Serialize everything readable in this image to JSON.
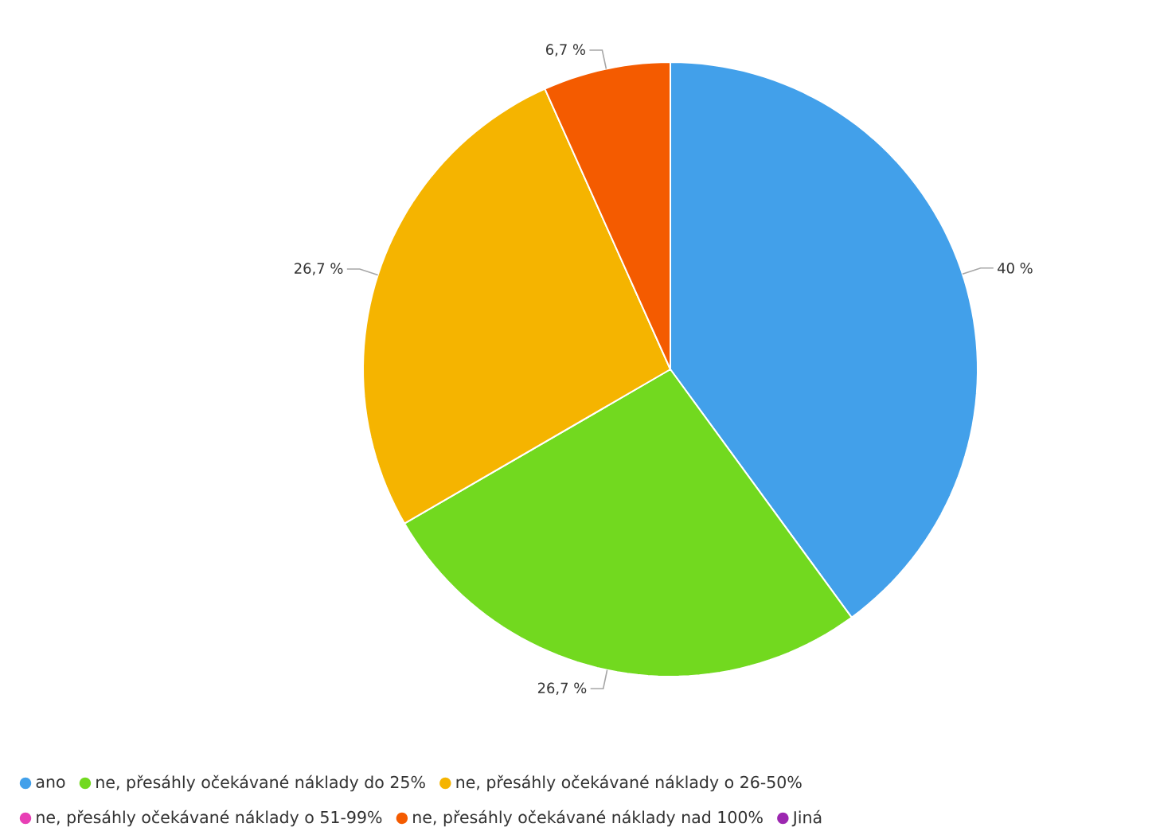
{
  "chart_data": {
    "type": "pie",
    "categories": [
      "ano",
      "ne, přesáhly očekávané náklady do 25%",
      "ne, přesáhly očekávané náklady o 26-50%",
      "ne, přesáhly očekávané náklady o 51-99%",
      "ne, přesáhly očekávané náklady nad 100%",
      "Jiná"
    ],
    "values": [
      40,
      26.7,
      26.7,
      0,
      6.7,
      0
    ],
    "value_labels": [
      "40 %",
      "26,7 %",
      "26,7 %",
      null,
      "6,7 %",
      null
    ],
    "colors": [
      "#42a0ea",
      "#72d91f",
      "#f5b400",
      "#e83fb5",
      "#f45b00",
      "#9c27b0"
    ],
    "legend": "bottom"
  }
}
